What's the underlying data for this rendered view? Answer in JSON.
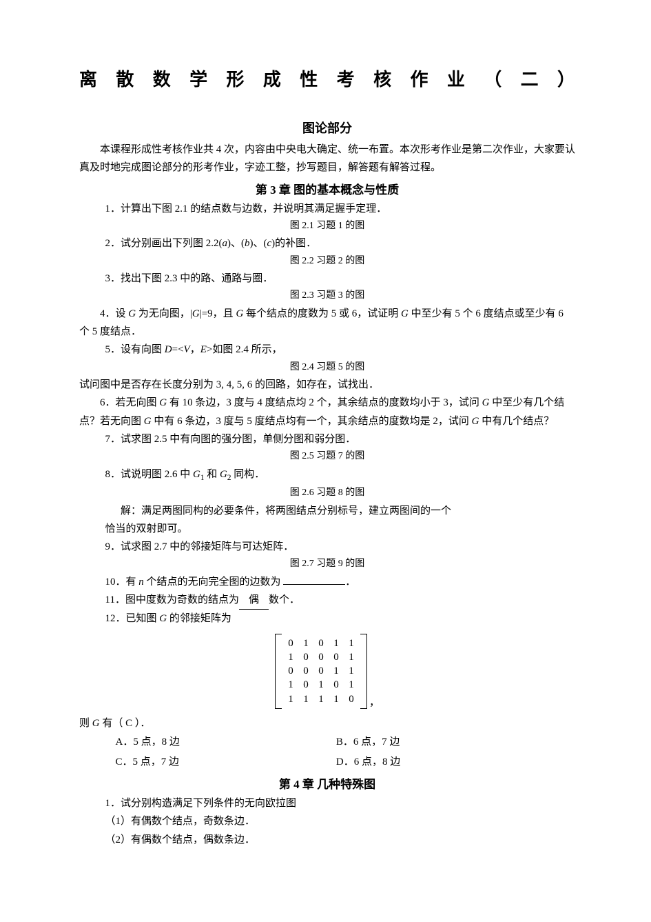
{
  "title": "离 散 数 学 形 成 性 考 核 作 业 （ 二 ）",
  "section": "图论部分",
  "intro": "本课程形成性考核作业共 4 次，内容由中央电大确定、统一布置。本次形考作业是第二次作业，大家要认真及时地完成图论部分的形考作业，字迹工整，抄写题目，解答题有解答过程。",
  "chapter3": "第 3 章   图的基本概念与性质",
  "q1": "1．计算出下图 2.1 的结点数与边数，并说明其满足握手定理．",
  "fig1": "图 2.1    习题 1 的图",
  "q2_a": "2．试分别画出下列图 2.2(",
  "q2_b": ")、(",
  "q2_c": ")、(",
  "q2_d": ")的补图．",
  "letters": {
    "a": "a",
    "b": "b",
    "c": "c"
  },
  "fig2": "图 2.2    习题 2 的图",
  "q3": "3．找出下图 2.3 中的路、通路与圈．",
  "fig3": "图 2.3    习题 3 的图",
  "q4_a": "4．设 ",
  "q4_b": " 为无向图，|",
  "q4_c": "|=9，且 ",
  "q4_d": " 每个结点的度数为 5 或 6，试证明 ",
  "q4_e": " 中至少有 5 个 6 度结点或至少有 6 个 5 度结点．",
  "q5_a": "5．设有向图 ",
  "q5_b": "=<",
  "q5_c": ">如图 2.4 所示，",
  "letters2": {
    "G": "G",
    "D": "D",
    "V": "V",
    "E": "E",
    "n": "n"
  },
  "fig4": "图 2.4   习题 5 的图",
  "q5_line2": "试问图中是否存在长度分别为 3, 4, 5, 6 的回路，如存在，试找出．",
  "q6_a": "6．若无向图 ",
  "q6_b": " 有 10 条边，3 度与 4 度结点均 2 个，其余结点的度数均小于 3，试问 ",
  "q6_c": " 中至少有几个结点？若无向图 ",
  "q6_d": " 中有 6 条边，3 度与 5 度结点均有一个，其余结点的度数均是 2，试问 ",
  "q6_e": " 中有几个结点？",
  "q7": "7．试求图 2.5 中有向图的强分图，单侧分图和弱分图．",
  "fig5": "图 2.5    习题 7 的图",
  "q8_a": "8．试说明图 2.6 中 ",
  "q8_b": " 和 ",
  "q8_c": " 同构．",
  "sub1": "1",
  "sub2": "2",
  "fig6": "图 2.6   习题 8 的图",
  "q8_sol1": "解：满足两图同构的必要条件，将两图结点分别标号，建立两图间的一个",
  "q8_sol2": "恰当的双射即可。",
  "q9": "9．试求图 2.7 中的邻接矩阵与可达矩阵．",
  "fig7": "图 2.7    习题 9 的图",
  "q10_a": "10．有 ",
  "q10_b": " 个结点的无向完全图的边数为  ",
  "q11_a": "11．图中度数为奇数的结点为",
  "q11_fill": "偶",
  "q11_b": "数个．",
  "q12_a": "12．已知图 ",
  "q12_b": " 的邻接矩阵为",
  "matrix": [
    [
      "0",
      "1",
      "0",
      "1",
      "1"
    ],
    [
      "1",
      "0",
      "0",
      "0",
      "1"
    ],
    [
      "0",
      "0",
      "0",
      "1",
      "1"
    ],
    [
      "1",
      "0",
      "1",
      "0",
      "1"
    ],
    [
      "1",
      "1",
      "1",
      "1",
      "0"
    ]
  ],
  "q12_c_a": "则 ",
  "q12_c_b": " 有（  C    ）．",
  "optA": "A．5 点，8 边",
  "optB": "B．6 点，7 边",
  "optC": "C．5 点，7 边",
  "optD": "D．6 点，8 边",
  "chapter4": "第 4 章  几种特殊图",
  "c4q1": "1．试分别构造满足下列条件的无向欧拉图",
  "c4q1_1": "（1）有偶数个结点，奇数条边．",
  "c4q1_2": "（2）有偶数个结点，偶数条边．",
  "comma": "，"
}
